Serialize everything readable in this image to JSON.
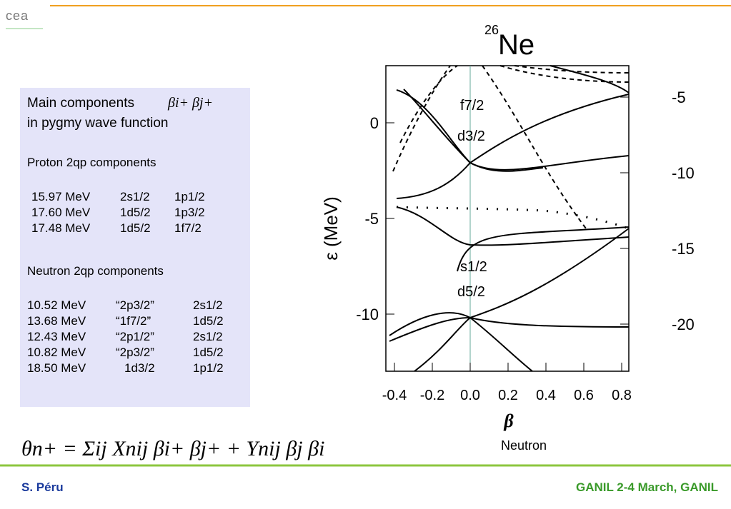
{
  "header": {
    "logo": "cea"
  },
  "box": {
    "title_lines": [
      "Main components",
      "in pygmy wave function"
    ],
    "title_symbol": "βi+ βj+",
    "proton_heading": "Proton 2qp components",
    "proton_rows": [
      [
        "15.97 MeV",
        "2s1/2",
        "1p1/2"
      ],
      [
        "17.60 MeV",
        "1d5/2",
        "1p3/2"
      ],
      [
        "17.48 MeV",
        "1d5/2",
        "1f7/2"
      ]
    ],
    "neutron_heading": "Neutron 2qp components",
    "neutron_rows": [
      [
        "10.52 MeV",
        "“2p3/2”",
        "2s1/2"
      ],
      [
        "13.68 MeV",
        "“1f7/2”",
        "1d5/2"
      ],
      [
        "12.43 MeV",
        "“2p1/2”",
        "2s1/2"
      ],
      [
        "10.82 MeV",
        "“2p3/2”",
        "1d5/2"
      ],
      [
        "18.50 MeV",
        "1d3/2",
        "1p1/2"
      ]
    ]
  },
  "formula": "θn+ = Σij Xnij βi+ βj+ + Ynij βj βi",
  "figure": {
    "title_mass": "26",
    "title_element": "Ne",
    "y_label": "ε (MeV)",
    "x_label": "β",
    "caption": "Neutron",
    "x_ticks": [
      "-0.4",
      "-0.2",
      "0.0",
      "0.2",
      "0.4",
      "0.6",
      "0.8"
    ],
    "y_left_ticks": [
      "0",
      "-5",
      "-10"
    ],
    "y_right_ticks": [
      "-5",
      "-10",
      "-15",
      "-20"
    ],
    "orbital_labels": [
      "f7/2",
      "d3/2",
      "s1/2",
      "d5/2"
    ]
  },
  "footer": {
    "author": "S. Péru",
    "event": "GANIL 2-4 March, GANIL"
  }
}
